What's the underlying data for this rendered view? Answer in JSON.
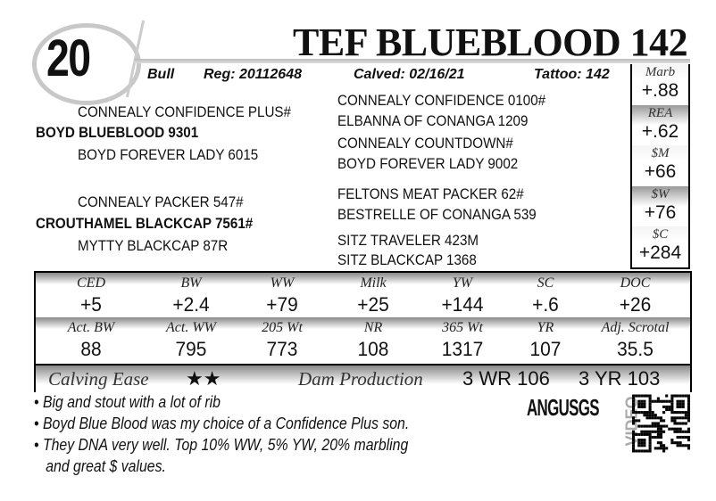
{
  "lot_number": "20",
  "title": "TEF BLUEBLOOD 142",
  "info": {
    "sex": "Bull",
    "reg": "Reg: 20112648",
    "calved": "Calved: 02/16/21",
    "tattoo": "Tattoo: 142"
  },
  "pedigree": {
    "sire": "BOYD BLUEBLOOD 9301",
    "sire_sire": "CONNEALY CONFIDENCE PLUS#",
    "sire_dam": "BOYD FOREVER LADY 6015",
    "dam": "CROUTHAMEL BLACKCAP 7561#",
    "dam_sire": "CONNEALY PACKER 547#",
    "dam_dam": "MYTTY BLACKCAP 87R",
    "far_right": [
      "CONNEALY CONFIDENCE 0100#",
      "ELBANNA OF CONANGA 1209",
      "CONNEALY COUNTDOWN#",
      "BOYD FOREVER LADY 9002",
      "FELTONS MEAT PACKER 62#",
      "BESTRELLE OF CONANGA 539",
      "SITZ TRAVELER 423M",
      "SITZ BLACKCAP 1368"
    ]
  },
  "side_epds": [
    {
      "label": "Marb",
      "value": "+.88"
    },
    {
      "label": "REA",
      "value": "+.62"
    },
    {
      "label": "$M",
      "value": "+66"
    },
    {
      "label": "$W",
      "value": "+76"
    },
    {
      "label": "$C",
      "value": "+284"
    }
  ],
  "epds": {
    "headers": [
      "CED",
      "BW",
      "WW",
      "Milk",
      "YW",
      "SC",
      "DOC"
    ],
    "values": [
      "+5",
      "+2.4",
      "+79",
      "+25",
      "+144",
      "+.6",
      "+26"
    ]
  },
  "actuals": {
    "headers": [
      "Act. BW",
      "Act. WW",
      "205 Wt",
      "NR",
      "365 Wt",
      "YR",
      "Adj. Scrotal"
    ],
    "values": [
      "88",
      "795",
      "773",
      "108",
      "1317",
      "107",
      "35.5"
    ]
  },
  "calving_ease": {
    "label": "Calving Ease",
    "stars": "★★"
  },
  "dam_production": {
    "label": "Dam Production",
    "wr": "3 WR 106",
    "yr": "3 YR 103"
  },
  "notes": [
    "• Big and stout with a lot of rib",
    "• Boyd Blue Blood was my choice of a Confidence Plus son.",
    "• They DNA very well. Top 10% WW, 5% YW, 20% marbling",
    "   and great $ values."
  ],
  "angus_logo": "ANGUSGS",
  "video_label": "VIDEO"
}
